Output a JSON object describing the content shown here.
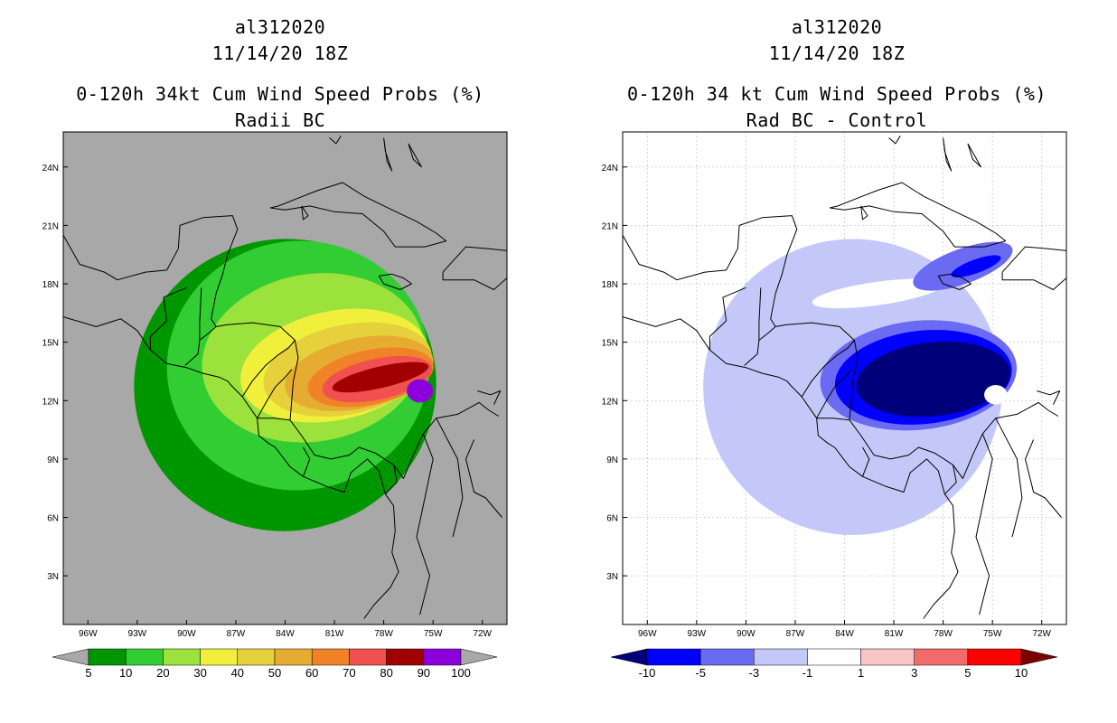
{
  "chart_data": [
    {
      "type": "heatmap",
      "title_lines": [
        "al312020",
        "11/14/20 18Z",
        "0-120h 34kt Cum Wind Speed Probs (%)",
        "Radii BC"
      ],
      "x_ticks": [
        "96W",
        "93W",
        "90W",
        "87W",
        "84W",
        "81W",
        "78W",
        "75W",
        "72W"
      ],
      "y_ticks": [
        "24N",
        "21N",
        "18N",
        "15N",
        "12N",
        "9N",
        "6N",
        "3N"
      ],
      "xlim": [
        -97.5,
        -70.5
      ],
      "ylim": [
        0.5,
        25.8
      ],
      "background": "#a8a8a8",
      "colorbar": {
        "levels": [
          "5",
          "10",
          "20",
          "30",
          "40",
          "50",
          "60",
          "70",
          "80",
          "90",
          "100"
        ],
        "colors": [
          "#009600",
          "#32cd32",
          "#9be23c",
          "#f0f03c",
          "#e6d03c",
          "#e6ac32",
          "#f08228",
          "#f05050",
          "#a00000",
          "#8c00dc"
        ],
        "under_color": "#a8a8a8",
        "over_color": "#a8a8a8"
      },
      "contours": [
        {
          "level": 5,
          "color": "#009600",
          "cx": -84.0,
          "cy": 12.8,
          "rx": 9.2,
          "ry": 7.5,
          "rot": -8
        },
        {
          "level": 10,
          "color": "#32cd32",
          "cx": -83.2,
          "cy": 13.8,
          "rx": 8.0,
          "ry": 6.4,
          "rot": -8
        },
        {
          "level": 20,
          "color": "#9be23c",
          "cx": -82.3,
          "cy": 14.2,
          "rx": 6.8,
          "ry": 4.3,
          "rot": -10
        },
        {
          "level": 30,
          "color": "#f0f03c",
          "cx": -81.0,
          "cy": 13.8,
          "rx": 5.8,
          "ry": 2.8,
          "rot": -12
        },
        {
          "level": 40,
          "color": "#e6d03c",
          "cx": -80.2,
          "cy": 13.6,
          "rx": 5.2,
          "ry": 2.3,
          "rot": -12
        },
        {
          "level": 50,
          "color": "#e6ac32",
          "cx": -79.5,
          "cy": 13.4,
          "rx": 4.6,
          "ry": 1.8,
          "rot": -12
        },
        {
          "level": 60,
          "color": "#f08228",
          "cx": -78.8,
          "cy": 13.2,
          "rx": 3.9,
          "ry": 1.4,
          "rot": -12
        },
        {
          "level": 70,
          "color": "#f05050",
          "cx": -78.4,
          "cy": 13.1,
          "rx": 3.4,
          "ry": 1.05,
          "rot": -12
        },
        {
          "level": 80,
          "color": "#a00000",
          "cx": -78.2,
          "cy": 13.2,
          "rx": 3.0,
          "ry": 0.55,
          "rot": -13
        },
        {
          "level": 90,
          "color": "#8c00dc",
          "cx": -75.8,
          "cy": 12.5,
          "rx": 0.8,
          "ry": 0.6,
          "rot": 0
        }
      ]
    },
    {
      "type": "heatmap",
      "title_lines": [
        "al312020",
        "11/14/20 18Z",
        "0-120h 34 kt Cum Wind Speed Probs (%)",
        "Rad BC - Control"
      ],
      "x_ticks": [
        "96W",
        "93W",
        "90W",
        "87W",
        "84W",
        "81W",
        "78W",
        "75W",
        "72W"
      ],
      "y_ticks": [
        "24N",
        "21N",
        "18N",
        "15N",
        "12N",
        "9N",
        "6N",
        "3N"
      ],
      "xlim": [
        -97.5,
        -70.5
      ],
      "ylim": [
        0.5,
        25.8
      ],
      "background": "#ffffff",
      "colorbar": {
        "levels": [
          "-10",
          "-5",
          "-3",
          "-1",
          "1",
          "3",
          "5",
          "10"
        ],
        "colors": [
          "#0000ff",
          "#6a6af2",
          "#c4c8f8",
          "#ffffff",
          "#f8c4c4",
          "#f26a6a",
          "#ff0000"
        ],
        "under_color": "#00007a",
        "over_color": "#7a0000"
      },
      "contours": [
        {
          "level": -1,
          "color": "#c4c8f8",
          "cx": -83.5,
          "cy": 12.7,
          "rx": 9.1,
          "ry": 7.6,
          "rot": -6
        },
        {
          "level": 1,
          "color": "#ffffff",
          "cx": -82.0,
          "cy": 17.5,
          "rx": 4.0,
          "ry": 0.6,
          "rot": -8
        },
        {
          "level": -3,
          "color": "#6a6af2",
          "cx": -79.5,
          "cy": 13.3,
          "rx": 6.0,
          "ry": 2.8,
          "rot": -6
        },
        {
          "level": -3,
          "color": "#6a6af2",
          "cx": -76.8,
          "cy": 18.9,
          "rx": 3.2,
          "ry": 0.9,
          "rot": -20
        },
        {
          "level": -5,
          "color": "#0000ff",
          "cx": -79.2,
          "cy": 13.2,
          "rx": 5.4,
          "ry": 2.4,
          "rot": -6
        },
        {
          "level": -5,
          "color": "#0000ff",
          "cx": -76.0,
          "cy": 18.9,
          "rx": 1.6,
          "ry": 0.35,
          "rot": -20
        },
        {
          "level": -10,
          "color": "#00007a",
          "cx": -78.6,
          "cy": 13.1,
          "rx": 4.7,
          "ry": 1.9,
          "rot": -6
        },
        {
          "level": 1,
          "color": "#ffffff",
          "cx": -74.8,
          "cy": 12.3,
          "rx": 0.7,
          "ry": 0.5,
          "rot": 0
        }
      ]
    }
  ]
}
